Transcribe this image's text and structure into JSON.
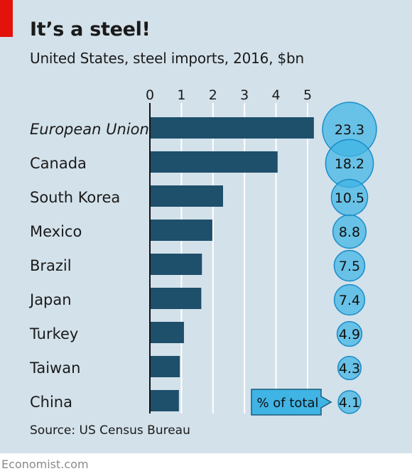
{
  "chart_data": {
    "type": "bar",
    "title": "It’s a steel!",
    "subtitle": "United States, steel imports, 2016, $bn",
    "source": "Source: US Census Bureau",
    "brand": "Economist.com",
    "categories": [
      "European Union",
      "Canada",
      "South Korea",
      "Mexico",
      "Brazil",
      "Japan",
      "Turkey",
      "Taiwan",
      "China"
    ],
    "italic_categories": [
      "European Union"
    ],
    "values": [
      5.2,
      4.05,
      2.32,
      1.98,
      1.65,
      1.63,
      1.08,
      0.95,
      0.92
    ],
    "share_label": "% of total",
    "share_values": [
      23.3,
      18.2,
      10.5,
      8.8,
      7.5,
      7.4,
      4.9,
      4.3,
      4.1
    ],
    "xlim": [
      0,
      5.4
    ],
    "xticks": [
      0,
      1,
      2,
      3,
      4,
      5
    ],
    "colors": {
      "background": "#d3e1ea",
      "bar": "#1e4f6b",
      "bubble_fill": "#3fb4e5",
      "bubble_stroke": "#1a8cc9",
      "gridline": "#ffffff",
      "accent": "#e3120b"
    }
  }
}
